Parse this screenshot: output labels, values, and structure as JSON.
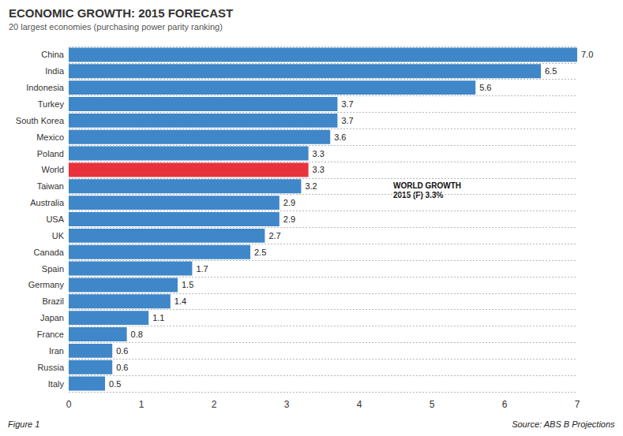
{
  "chart_data": {
    "type": "bar",
    "title": "ECONOMIC GROWTH: 2015 FORECAST",
    "subtitle": "20 largest economies (purchasing power parity ranking)",
    "annotation": [
      "WORLD GROWTH",
      "2015 (F) 3.3%"
    ],
    "figure_label": "Figure 1",
    "source": "Source: ABS B Projections",
    "orientation": "horizontal",
    "categories": [
      "China",
      "India",
      "Indonesia",
      "Turkey",
      "South Korea",
      "Mexico",
      "Poland",
      "World",
      "Taiwan",
      "Australia",
      "USA",
      "UK",
      "Canada",
      "Spain",
      "Germany",
      "Brazil",
      "Japan",
      "France",
      "Iran",
      "Russia",
      "Italy"
    ],
    "values": [
      7.0,
      6.5,
      5.6,
      3.7,
      3.7,
      3.6,
      3.3,
      3.3,
      3.2,
      2.9,
      2.9,
      2.7,
      2.5,
      1.7,
      1.5,
      1.4,
      1.1,
      0.8,
      0.6,
      0.6,
      0.5
    ],
    "value_labels": [
      "7.0",
      "6.5",
      "5.6",
      "3.7",
      "3.7",
      "3.6",
      "3.3",
      "3.3",
      "3.2",
      "2.9",
      "2.9",
      "2.7",
      "2.5",
      "1.7",
      "1.5",
      "1.4",
      "1.1",
      "0.8",
      "0.6",
      "0.6",
      "0.5"
    ],
    "colors": [
      "#3f87c8",
      "#3f87c8",
      "#3f87c8",
      "#3f87c8",
      "#3f87c8",
      "#3f87c8",
      "#3f87c8",
      "#e8323c",
      "#3f87c8",
      "#3f87c8",
      "#3f87c8",
      "#3f87c8",
      "#3f87c8",
      "#3f87c8",
      "#3f87c8",
      "#3f87c8",
      "#3f87c8",
      "#3f87c8",
      "#3f87c8",
      "#3f87c8",
      "#3f87c8"
    ],
    "xlim": [
      0,
      7
    ],
    "xticks": [
      0,
      1,
      2,
      3,
      4,
      5,
      6,
      7
    ],
    "data_labels": true,
    "grid": true
  }
}
